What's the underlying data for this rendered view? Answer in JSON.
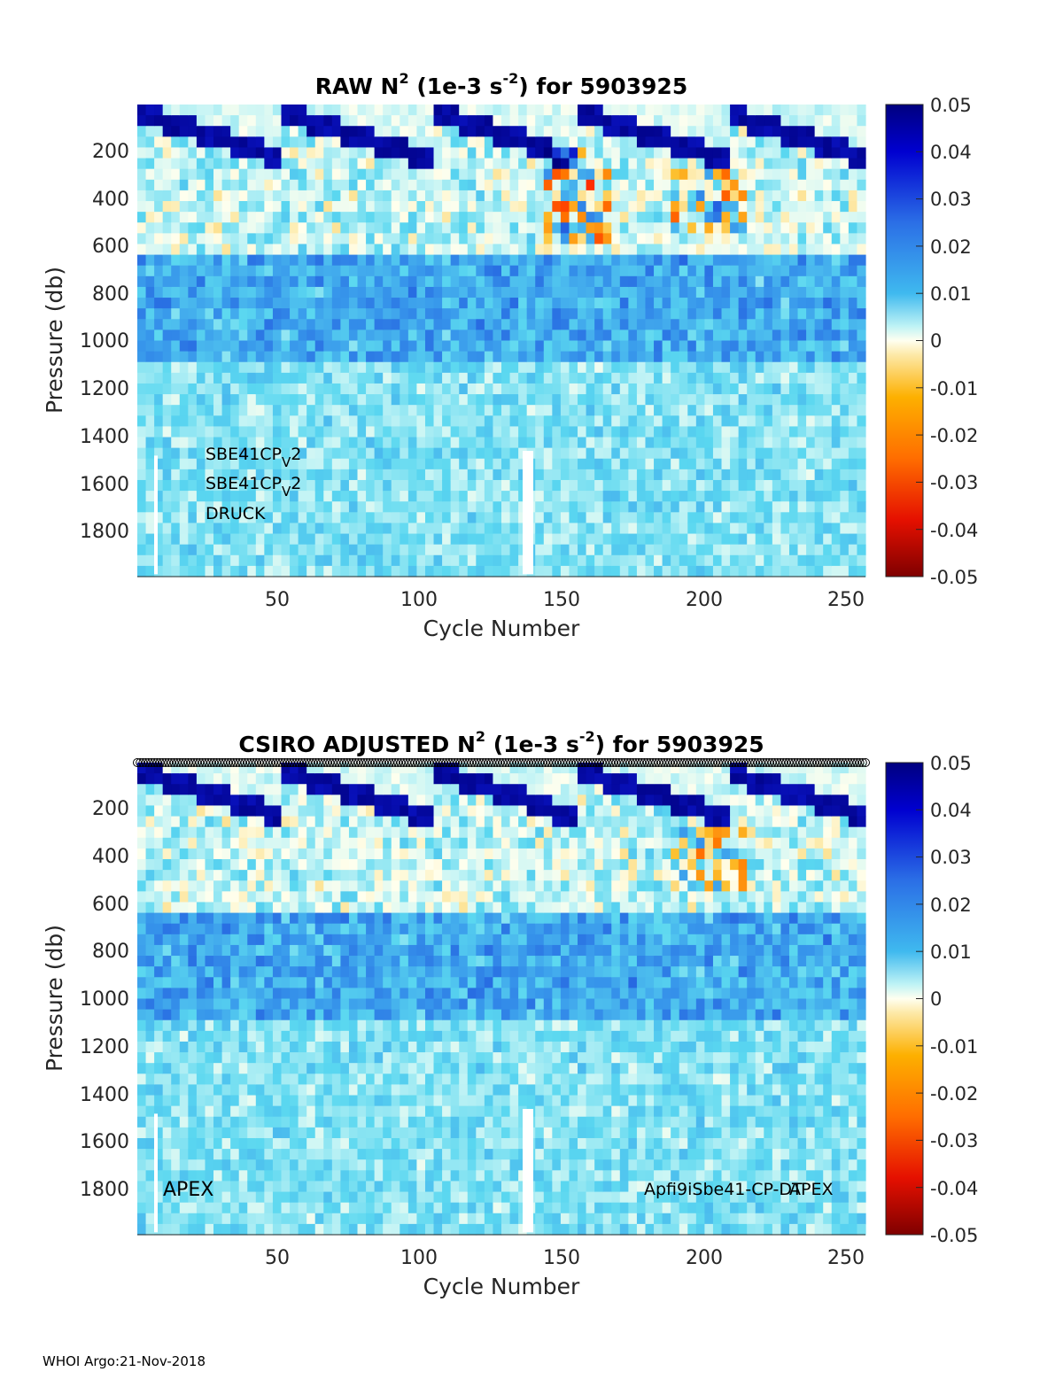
{
  "footer": "WHOI Argo:21-Nov-2018",
  "chart_data": [
    {
      "type": "heatmap",
      "title": {
        "prefix": "RAW N",
        "sup": "2",
        "mid": " (1e-3 s",
        "sup2": "-2",
        "suffix": ") for 5903925"
      },
      "xlabel": "Cycle Number",
      "ylabel": "Pressure (db)",
      "xlim": [
        1,
        258
      ],
      "ylim": [
        2000,
        10
      ],
      "xticks": [
        50,
        100,
        150,
        200,
        250
      ],
      "yticks": [
        200,
        400,
        600,
        800,
        1000,
        1200,
        1400,
        1600,
        1800
      ],
      "colorbar": {
        "range": [
          -0.05,
          0.05
        ],
        "ticks": [
          "0.05",
          "0.04",
          "0.03",
          "0.02",
          "0.01",
          "0",
          "-0.01",
          "-0.02",
          "-0.03",
          "-0.04",
          "-0.05"
        ],
        "colormap": "dark-red to orange to cream to cyan to blue to dark-navy"
      },
      "annotations": {
        "sensor1_main": "SBE41CP",
        "sensor1_sub": "V",
        "sensor1_end": "2",
        "sensor2_main": "SBE41CP",
        "sensor2_sub": "V",
        "sensor2_end": "2",
        "sensor3": "DRUCK"
      }
    },
    {
      "type": "heatmap",
      "title": {
        "prefix": "CSIRO  ADJUSTED N",
        "sup": "2",
        "mid": " (1e-3 s",
        "sup2": "-2",
        "suffix": ") for 5903925"
      },
      "xlabel": "Cycle Number",
      "ylabel": "Pressure (db)",
      "xlim": [
        1,
        258
      ],
      "ylim": [
        2000,
        10
      ],
      "xticks": [
        50,
        100,
        150,
        200,
        250
      ],
      "yticks": [
        200,
        400,
        600,
        800,
        1000,
        1200,
        1400,
        1600,
        1800
      ],
      "colorbar": {
        "range": [
          -0.05,
          0.05
        ],
        "ticks": [
          "0.05",
          "0.04",
          "0.03",
          "0.02",
          "0.01",
          "0",
          "-0.01",
          "-0.02",
          "-0.03",
          "-0.04",
          "-0.05"
        ],
        "colormap": "dark-red to orange to cream to cyan to blue to dark-navy"
      },
      "annotations": {
        "left": "APEX",
        "right": "Apfi9iSbe41-CP-DT",
        "right_overlap": "APEX"
      },
      "top_marker_row": "black open circles along top edge, one per cycle"
    }
  ]
}
